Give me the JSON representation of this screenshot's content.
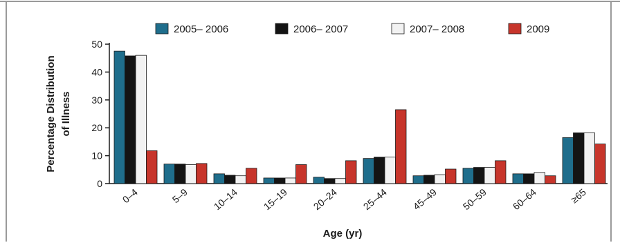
{
  "chart_data": {
    "type": "bar",
    "title": "",
    "xlabel": "Age (yr)",
    "ylabel_lines": [
      "Percentage Distribution",
      "of Illness"
    ],
    "ylim": [
      0,
      50
    ],
    "yticks": [
      0,
      10,
      20,
      30,
      40,
      50
    ],
    "categories": [
      "0–4",
      "5–9",
      "10–14",
      "15–19",
      "20–24",
      "25–44",
      "45–49",
      "50–59",
      "60–64",
      "≥65"
    ],
    "series": [
      {
        "name": "2005– 2006",
        "color": "#1f6e8c",
        "values": [
          47.5,
          7.0,
          3.5,
          2.0,
          2.3,
          9.0,
          2.8,
          5.5,
          3.5,
          16.5
        ]
      },
      {
        "name": "2006– 2007",
        "color": "#141414",
        "values": [
          45.8,
          7.0,
          3.0,
          2.0,
          1.8,
          9.5,
          3.0,
          5.8,
          3.5,
          18.2
        ]
      },
      {
        "name": "2007– 2008",
        "color": "#f2f2f2",
        "values": [
          46.0,
          6.8,
          2.8,
          2.0,
          1.8,
          9.5,
          3.2,
          5.8,
          4.0,
          18.2
        ]
      },
      {
        "name": "2009",
        "color": "#c7352b",
        "values": [
          11.8,
          7.2,
          5.5,
          6.8,
          8.2,
          26.5,
          5.2,
          8.2,
          2.8,
          14.2
        ]
      }
    ],
    "grid": false,
    "legend": "top"
  }
}
